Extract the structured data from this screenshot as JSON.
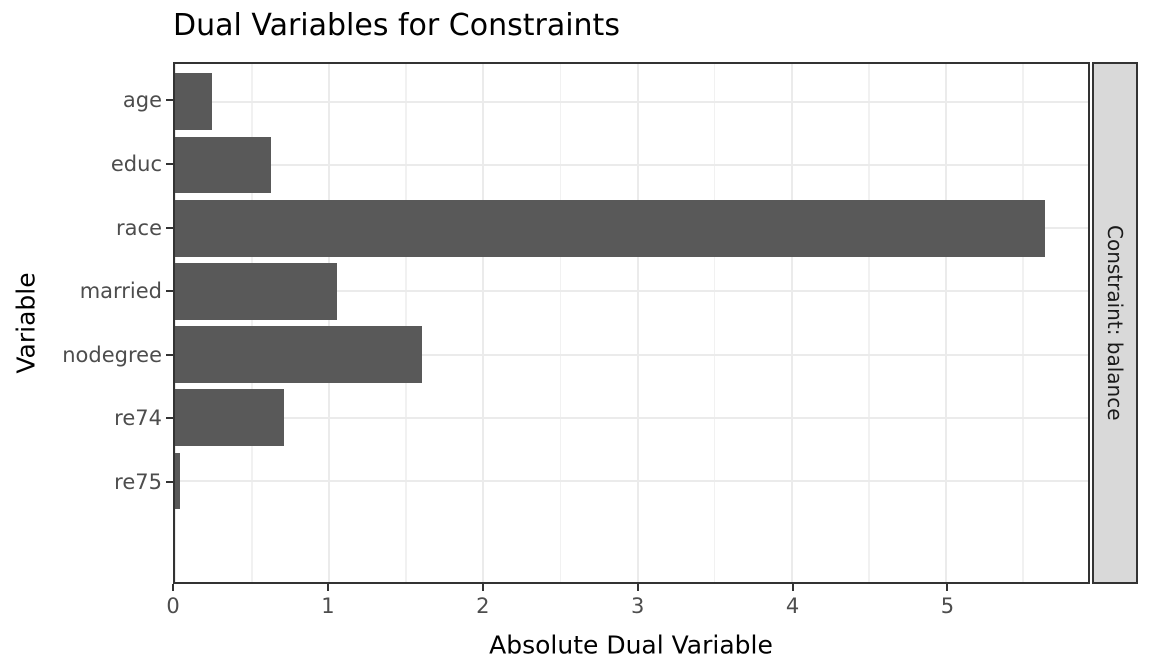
{
  "chart_data": {
    "type": "bar",
    "orientation": "horizontal",
    "title": "Dual Variables for Constraints",
    "xlabel": "Absolute Dual Variable",
    "ylabel": "Variable",
    "facet_strip_label": "Constraint: balance",
    "categories": [
      "age",
      "educ",
      "race",
      "married",
      "nodegree",
      "re74",
      "re75"
    ],
    "values": [
      0.24,
      0.62,
      5.64,
      1.05,
      1.6,
      0.71,
      0.03
    ],
    "xlim": [
      0,
      5.92
    ],
    "x_major_ticks": [
      0,
      1,
      2,
      3,
      4,
      5
    ],
    "x_minor_ticks": [
      0.5,
      1.5,
      2.5,
      3.5,
      4.5,
      5.5
    ],
    "grid": "vertical major+minor, horizontal major at category centers",
    "legend": "none",
    "colors": {
      "bar_fill": "#595959",
      "panel_background": "#ffffff",
      "panel_border": "#333333",
      "grid_major": "#ebebeb",
      "grid_minor": "#f1f1f1",
      "strip_background": "#d9d9d9",
      "strip_text": "#1a1a1a",
      "axis_tick_label": "#4d4d4d",
      "axis_tick_mark": "#333333",
      "title_text": "#000000"
    }
  }
}
